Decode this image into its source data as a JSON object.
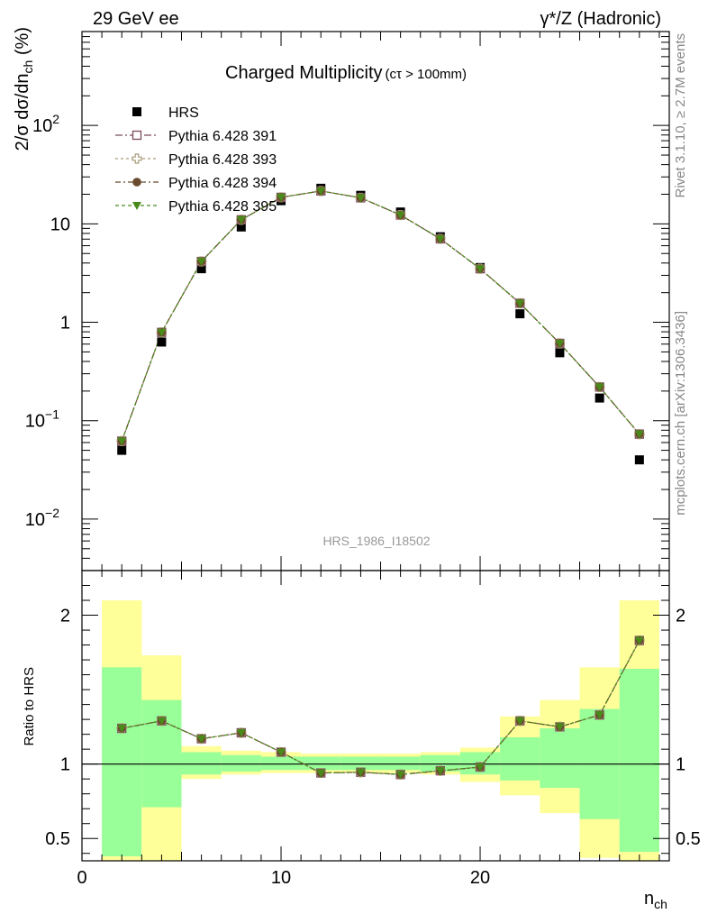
{
  "header": {
    "left": "29 GeV ee",
    "right": "γ*/Z (Hadronic)"
  },
  "side_labels": {
    "rivet": "Rivet 3.1.10, ≥ 2.7M events",
    "mcplots": "mcplots.cern.ch [arXiv:1306.3436]"
  },
  "analysis_id": "HRS_1986_I18502",
  "colors": {
    "data": "#000000",
    "p391": "#7a4b5a",
    "p393": "#a89a78",
    "p394": "#6b4a2e",
    "p395": "#4a8a1a",
    "band_inner": "#99ff99",
    "band_outer": "#ffff99"
  },
  "chart_data": [
    {
      "type": "scatter",
      "title": "Charged Multiplicity",
      "subtitle": "(cτ > 100mm)",
      "ylabel": "2/σ dσ/dn_ch (%)",
      "yscale": "log",
      "ylim": [
        0.003,
        900
      ],
      "xlim": [
        0,
        29.5
      ],
      "yticks": [
        {
          "v": 0.01,
          "label": "10",
          "exp": "−2"
        },
        {
          "v": 0.1,
          "label": "10",
          "exp": "−1"
        },
        {
          "v": 1,
          "label": "1",
          "exp": ""
        },
        {
          "v": 10,
          "label": "10",
          "exp": ""
        },
        {
          "v": 100,
          "label": "10",
          "exp": "2"
        }
      ],
      "legend_position": "top-left",
      "x": [
        2,
        4,
        6,
        8,
        10,
        12,
        14,
        16,
        18,
        20,
        22,
        24,
        26,
        28
      ],
      "series": [
        {
          "name": "HRS",
          "marker": "filled-square",
          "values": [
            0.05,
            0.63,
            3.5,
            9.3,
            17.2,
            23.0,
            19.5,
            13.2,
            7.4,
            3.6,
            1.22,
            0.49,
            0.17,
            0.04
          ]
        },
        {
          "name": "Pythia 6.428 391",
          "marker": "open-square",
          "values": [
            0.062,
            0.79,
            4.15,
            11.0,
            18.6,
            21.6,
            18.4,
            12.3,
            7.05,
            3.5,
            1.56,
            0.61,
            0.22,
            0.073
          ]
        },
        {
          "name": "Pythia 6.428 393",
          "marker": "open-cross",
          "values": [
            0.062,
            0.79,
            4.15,
            11.0,
            18.6,
            21.6,
            18.4,
            12.3,
            7.05,
            3.5,
            1.56,
            0.61,
            0.22,
            0.073
          ]
        },
        {
          "name": "Pythia 6.428 394",
          "marker": "filled-circle",
          "values": [
            0.062,
            0.79,
            4.15,
            11.0,
            18.6,
            21.6,
            18.4,
            12.3,
            7.05,
            3.5,
            1.56,
            0.61,
            0.22,
            0.073
          ]
        },
        {
          "name": "Pythia 6.428 395",
          "marker": "filled-triangle-down",
          "values": [
            0.062,
            0.79,
            4.15,
            11.0,
            18.6,
            21.6,
            18.4,
            12.3,
            7.05,
            3.5,
            1.56,
            0.61,
            0.22,
            0.073
          ]
        }
      ]
    },
    {
      "type": "line",
      "ylabel": "Ratio to HRS",
      "xlabel": "n_ch",
      "ylim": [
        0.35,
        2.3
      ],
      "xlim": [
        0,
        29.5
      ],
      "xticks": [
        0,
        10,
        20
      ],
      "yticks": [
        0.5,
        1,
        2
      ],
      "bins": [
        {
          "lo": 1,
          "hi": 3,
          "inner": [
            0.38,
            1.65
          ],
          "outer": [
            0.35,
            2.1
          ]
        },
        {
          "lo": 3,
          "hi": 5,
          "inner": [
            0.71,
            1.43
          ],
          "outer": [
            0.35,
            1.73
          ]
        },
        {
          "lo": 5,
          "hi": 7,
          "inner": [
            0.93,
            1.08
          ],
          "outer": [
            0.9,
            1.12
          ]
        },
        {
          "lo": 7,
          "hi": 9,
          "inner": [
            0.95,
            1.06
          ],
          "outer": [
            0.93,
            1.09
          ]
        },
        {
          "lo": 9,
          "hi": 11,
          "inner": [
            0.96,
            1.05
          ],
          "outer": [
            0.94,
            1.08
          ]
        },
        {
          "lo": 11,
          "hi": 13,
          "inner": [
            0.96,
            1.05
          ],
          "outer": [
            0.94,
            1.07
          ]
        },
        {
          "lo": 13,
          "hi": 15,
          "inner": [
            0.96,
            1.05
          ],
          "outer": [
            0.94,
            1.07
          ]
        },
        {
          "lo": 15,
          "hi": 17,
          "inner": [
            0.96,
            1.05
          ],
          "outer": [
            0.94,
            1.07
          ]
        },
        {
          "lo": 17,
          "hi": 19,
          "inner": [
            0.95,
            1.06
          ],
          "outer": [
            0.93,
            1.08
          ]
        },
        {
          "lo": 19,
          "hi": 21,
          "inner": [
            0.93,
            1.08
          ],
          "outer": [
            0.88,
            1.11
          ]
        },
        {
          "lo": 21,
          "hi": 23,
          "inner": [
            0.89,
            1.18
          ],
          "outer": [
            0.79,
            1.32
          ]
        },
        {
          "lo": 23,
          "hi": 25,
          "inner": [
            0.84,
            1.24
          ],
          "outer": [
            0.67,
            1.43
          ]
        },
        {
          "lo": 25,
          "hi": 27,
          "inner": [
            0.63,
            1.37
          ],
          "outer": [
            0.37,
            1.65
          ]
        },
        {
          "lo": 27,
          "hi": 29,
          "inner": [
            0.41,
            1.64
          ],
          "outer": [
            0.35,
            2.1
          ]
        }
      ],
      "x": [
        2,
        4,
        6,
        8,
        10,
        12,
        14,
        16,
        18,
        20,
        22,
        24,
        26,
        28
      ],
      "series": [
        {
          "name": "Pythia 6.428 391",
          "values": [
            1.24,
            1.29,
            1.17,
            1.21,
            1.08,
            0.94,
            0.945,
            0.93,
            0.955,
            0.98,
            1.29,
            1.25,
            1.33,
            1.83
          ]
        },
        {
          "name": "Pythia 6.428 393",
          "values": [
            1.24,
            1.29,
            1.17,
            1.21,
            1.08,
            0.94,
            0.945,
            0.93,
            0.955,
            0.98,
            1.29,
            1.25,
            1.33,
            1.83
          ]
        },
        {
          "name": "Pythia 6.428 394",
          "values": [
            1.24,
            1.29,
            1.17,
            1.21,
            1.08,
            0.94,
            0.945,
            0.93,
            0.955,
            0.98,
            1.29,
            1.25,
            1.33,
            1.83
          ]
        },
        {
          "name": "Pythia 6.428 395",
          "values": [
            1.24,
            1.29,
            1.17,
            1.21,
            1.08,
            0.94,
            0.945,
            0.93,
            0.955,
            0.98,
            1.29,
            1.25,
            1.33,
            1.83
          ]
        }
      ]
    }
  ]
}
